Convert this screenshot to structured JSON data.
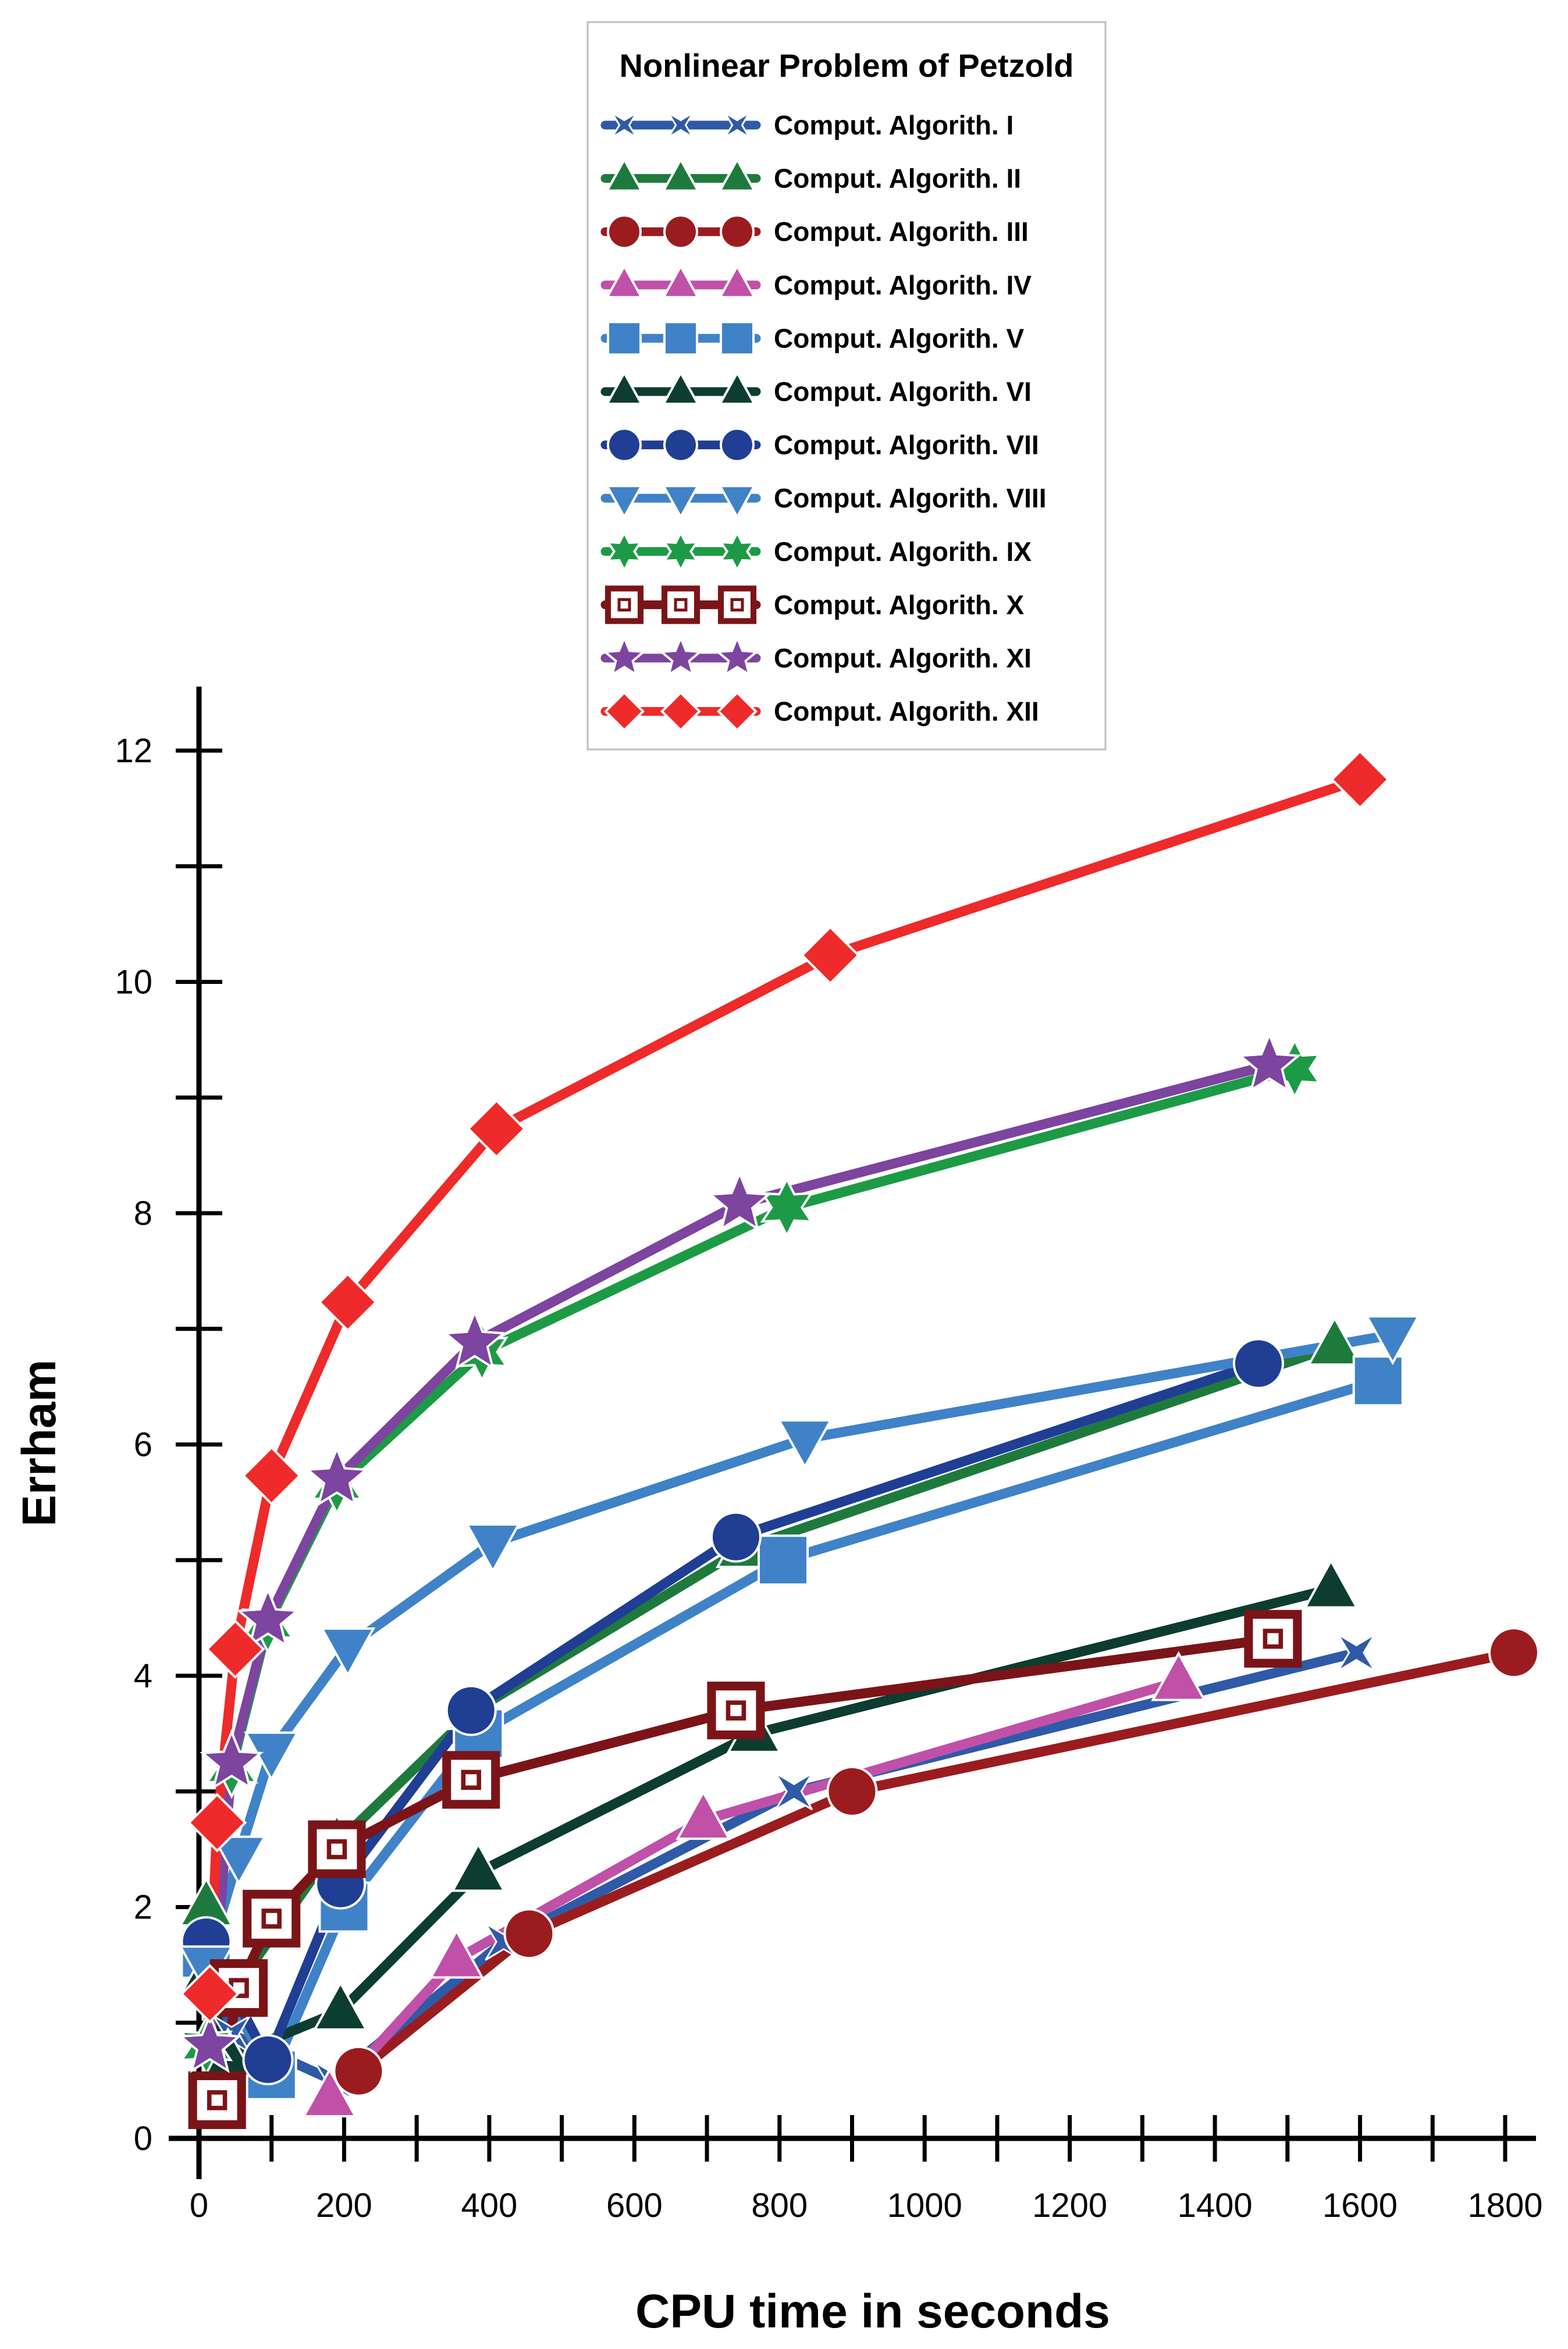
{
  "chart_data": {
    "type": "line",
    "title": "Nonlinear Problem of Petzold",
    "xlabel": "CPU time in seconds",
    "ylabel": "Errham",
    "xlim": [
      0,
      1800
    ],
    "ylim": [
      0,
      12
    ],
    "x_ticks": [
      0,
      200,
      400,
      600,
      800,
      1000,
      1200,
      1400,
      1600,
      1800
    ],
    "y_ticks": [
      0,
      2,
      4,
      6,
      8,
      10,
      12
    ],
    "x_tick_labels": [
      "0",
      "200",
      "400",
      "600",
      "800",
      "1000",
      "1200",
      "1400",
      "1600",
      "1800"
    ],
    "y_tick_labels": [
      "0",
      "2",
      "4",
      "6",
      "8",
      "10",
      "12"
    ],
    "legend_position": "top-center",
    "series": [
      {
        "name": "Comput. Algorith. I",
        "color": "#2e5aa8",
        "marker": "star4",
        "points": [
          [
            10,
            1.5
          ],
          [
            45,
            0.9
          ],
          [
            185,
            0.5
          ],
          [
            420,
            1.7
          ],
          [
            820,
            3.0
          ],
          [
            1595,
            4.2
          ]
        ]
      },
      {
        "name": "Comput. Algorith. II",
        "color": "#1e7a3c",
        "marker": "triangle",
        "points": [
          [
            10,
            2.0
          ],
          [
            45,
            1.25
          ],
          [
            190,
            2.55
          ],
          [
            380,
            3.7
          ],
          [
            750,
            5.1
          ],
          [
            1565,
            6.85
          ]
        ]
      },
      {
        "name": "Comput. Algorith. III",
        "color": "#9a1c1f",
        "marker": "circle",
        "points": [
          [
            220,
            0.58
          ],
          [
            455,
            1.77
          ],
          [
            900,
            3.0
          ],
          [
            1812,
            4.2
          ]
        ]
      },
      {
        "name": "Comput. Algorith. IV",
        "color": "#c050a8",
        "marker": "triangle",
        "points": [
          [
            180,
            0.35
          ],
          [
            355,
            1.55
          ],
          [
            695,
            2.75
          ],
          [
            1350,
            3.95
          ]
        ]
      },
      {
        "name": "Comput. Algorith. V",
        "color": "#3f82c8",
        "marker": "square",
        "points": [
          [
            10,
            1.6
          ],
          [
            100,
            0.55
          ],
          [
            200,
            2.0
          ],
          [
            385,
            3.5
          ],
          [
            805,
            5.0
          ],
          [
            1625,
            6.55
          ]
        ]
      },
      {
        "name": "Comput. Algorith. VI",
        "color": "#0d3d30",
        "marker": "triangle",
        "points": [
          [
            10,
            1.4
          ],
          [
            40,
            0.7
          ],
          [
            195,
            1.1
          ],
          [
            385,
            2.3
          ],
          [
            765,
            3.5
          ],
          [
            1560,
            4.75
          ]
        ]
      },
      {
        "name": "Comput. Algorith. VII",
        "color": "#1f3e94",
        "marker": "circle",
        "points": [
          [
            10,
            1.7
          ],
          [
            95,
            0.68
          ],
          [
            195,
            2.2
          ],
          [
            375,
            3.7
          ],
          [
            740,
            5.2
          ],
          [
            1460,
            6.7
          ]
        ]
      },
      {
        "name": "Comput. Algorith. VIII",
        "color": "#3f82c8",
        "marker": "triangle-down",
        "points": [
          [
            10,
            1.5
          ],
          [
            55,
            2.45
          ],
          [
            100,
            3.35
          ],
          [
            205,
            4.25
          ],
          [
            405,
            5.15
          ],
          [
            835,
            6.05
          ],
          [
            1645,
            6.95
          ]
        ]
      },
      {
        "name": "Comput. Algorith. IX",
        "color": "#1d9a45",
        "marker": "star6",
        "points": [
          [
            10,
            0.8
          ],
          [
            45,
            3.2
          ],
          [
            95,
            4.45
          ],
          [
            190,
            5.65
          ],
          [
            390,
            6.8
          ],
          [
            810,
            8.05
          ],
          [
            1510,
            9.25
          ]
        ]
      },
      {
        "name": "Comput. Algorith. X",
        "color": "#7b1418",
        "marker": "open-square",
        "points": [
          [
            25,
            0.33
          ],
          [
            55,
            1.3
          ],
          [
            100,
            1.9
          ],
          [
            190,
            2.5
          ],
          [
            375,
            3.1
          ],
          [
            740,
            3.7
          ],
          [
            1480,
            4.32
          ]
        ]
      },
      {
        "name": "Comput. Algorith. XI",
        "color": "#7d44a0",
        "marker": "star5",
        "points": [
          [
            15,
            0.8
          ],
          [
            45,
            3.25
          ],
          [
            95,
            4.48
          ],
          [
            190,
            5.7
          ],
          [
            380,
            6.88
          ],
          [
            745,
            8.08
          ],
          [
            1475,
            9.28
          ]
        ]
      },
      {
        "name": "Comput. Algorith. XII",
        "color": "#ee2a2a",
        "marker": "diamond",
        "points": [
          [
            15,
            1.25
          ],
          [
            25,
            2.73
          ],
          [
            50,
            4.23
          ],
          [
            100,
            5.73
          ],
          [
            205,
            7.23
          ],
          [
            410,
            8.73
          ],
          [
            870,
            10.23
          ],
          [
            1600,
            11.75
          ]
        ]
      }
    ]
  }
}
